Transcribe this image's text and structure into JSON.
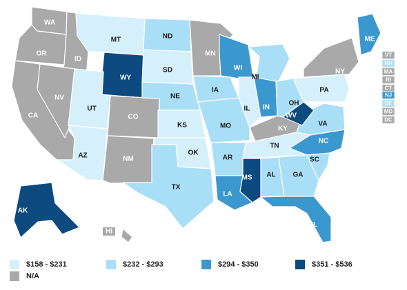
{
  "colors": {
    "bin1": "#d6f0fb",
    "bin2": "#a9def7",
    "bin3": "#3a98cf",
    "bin4": "#0c4a80",
    "na": "#a9a9a9",
    "label_dark": "#1a1a1a",
    "label_light": "#ffffff"
  },
  "legend": [
    {
      "label": "$158 - $231",
      "bin": "bin1"
    },
    {
      "label": "$232 - $293",
      "bin": "bin2"
    },
    {
      "label": "$294 - $350",
      "bin": "bin3"
    },
    {
      "label": "$351 - $536",
      "bin": "bin4"
    },
    {
      "label": "N/A",
      "bin": "na"
    }
  ],
  "states": [
    {
      "abbr": "WA",
      "bin": "na"
    },
    {
      "abbr": "OR",
      "bin": "na"
    },
    {
      "abbr": "CA",
      "bin": "na"
    },
    {
      "abbr": "ID",
      "bin": "na"
    },
    {
      "abbr": "NV",
      "bin": "na"
    },
    {
      "abbr": "MT",
      "bin": "bin1"
    },
    {
      "abbr": "WY",
      "bin": "bin4"
    },
    {
      "abbr": "UT",
      "bin": "bin1"
    },
    {
      "abbr": "AZ",
      "bin": "bin1"
    },
    {
      "abbr": "CO",
      "bin": "na"
    },
    {
      "abbr": "NM",
      "bin": "na"
    },
    {
      "abbr": "ND",
      "bin": "bin2"
    },
    {
      "abbr": "SD",
      "bin": "bin1"
    },
    {
      "abbr": "NE",
      "bin": "bin2"
    },
    {
      "abbr": "KS",
      "bin": "bin1"
    },
    {
      "abbr": "OK",
      "bin": "bin1"
    },
    {
      "abbr": "TX",
      "bin": "bin2"
    },
    {
      "abbr": "MN",
      "bin": "na"
    },
    {
      "abbr": "IA",
      "bin": "bin2"
    },
    {
      "abbr": "MO",
      "bin": "bin2"
    },
    {
      "abbr": "AR",
      "bin": "bin2"
    },
    {
      "abbr": "LA",
      "bin": "bin3"
    },
    {
      "abbr": "WI",
      "bin": "bin3"
    },
    {
      "abbr": "IL",
      "bin": "bin1"
    },
    {
      "abbr": "MS",
      "bin": "bin4"
    },
    {
      "abbr": "MI",
      "bin": "bin2"
    },
    {
      "abbr": "IN",
      "bin": "bin3"
    },
    {
      "abbr": "OH",
      "bin": "bin2"
    },
    {
      "abbr": "KY",
      "bin": "na"
    },
    {
      "abbr": "TN",
      "bin": "bin1"
    },
    {
      "abbr": "AL",
      "bin": "bin2"
    },
    {
      "abbr": "GA",
      "bin": "bin2"
    },
    {
      "abbr": "FL",
      "bin": "bin3"
    },
    {
      "abbr": "SC",
      "bin": "bin2"
    },
    {
      "abbr": "NC",
      "bin": "bin3"
    },
    {
      "abbr": "VA",
      "bin": "bin2"
    },
    {
      "abbr": "WV",
      "bin": "bin4"
    },
    {
      "abbr": "PA",
      "bin": "bin1"
    },
    {
      "abbr": "NY",
      "bin": "na"
    },
    {
      "abbr": "ME",
      "bin": "bin3"
    },
    {
      "abbr": "AK",
      "bin": "bin4"
    },
    {
      "abbr": "HI",
      "bin": "na"
    }
  ],
  "northeast_tags": [
    {
      "abbr": "VT",
      "bin": "na"
    },
    {
      "abbr": "NH",
      "bin": "bin2"
    },
    {
      "abbr": "MA",
      "bin": "na"
    },
    {
      "abbr": "RI",
      "bin": "na"
    },
    {
      "abbr": "CT",
      "bin": "na"
    },
    {
      "abbr": "NJ",
      "bin": "bin3"
    },
    {
      "abbr": "DE",
      "bin": "bin2"
    },
    {
      "abbr": "MD",
      "bin": "na"
    },
    {
      "abbr": "DC",
      "bin": "na"
    }
  ]
}
